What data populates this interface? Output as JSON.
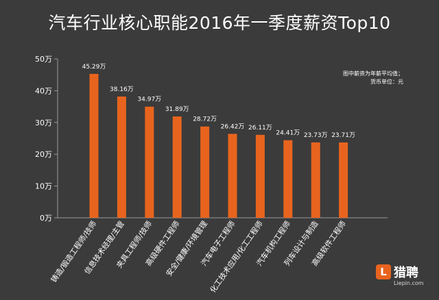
{
  "chart_data": {
    "type": "bar",
    "title": "汽车行业核心职能2016年一季度薪资Top10",
    "categories": [
      "铸造/锻造工程师/技师",
      "信息技术经理/主管",
      "夹具工程师/技师",
      "高级硬件工程师",
      "安全/健康/环境管理",
      "汽车电子工程师",
      "化工技术应用/化工工程师",
      "汽车机构工程师",
      "列车设计与制造",
      "高级软件工程师"
    ],
    "values": [
      45.29,
      38.16,
      34.97,
      31.89,
      28.72,
      26.42,
      26.11,
      24.41,
      23.73,
      23.71
    ],
    "value_labels": [
      "45.29万",
      "38.16万",
      "34.97万",
      "31.89万",
      "28.72万",
      "26.42万",
      "26.11万",
      "24.41万",
      "23.73万",
      "23.71万"
    ],
    "yticks": [
      0,
      10,
      20,
      30,
      40,
      50
    ],
    "ytick_labels": [
      "0万",
      "10万",
      "20万",
      "30万",
      "40万",
      "50万"
    ],
    "ylim": [
      0,
      50
    ],
    "grid": false,
    "bar_color": "#e8641e",
    "note_lines": [
      "图中薪资为年薪平均值；",
      "货币单位：元"
    ]
  },
  "logo": {
    "badge": "L",
    "name": "猎聘",
    "url": "Liepin.com"
  }
}
